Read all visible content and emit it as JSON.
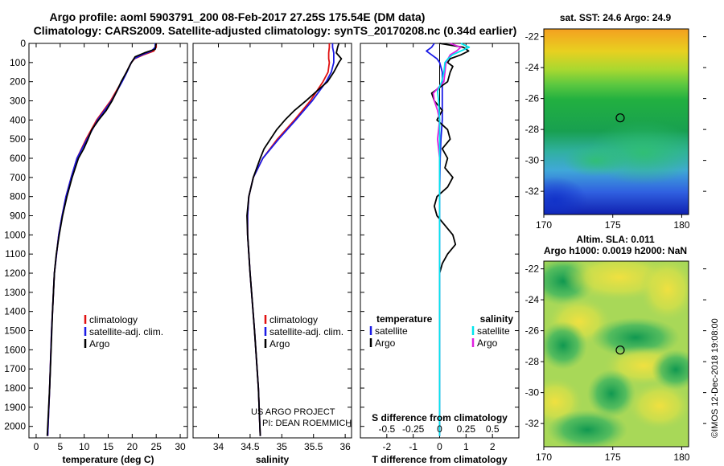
{
  "title_line1": "Argo profile: aoml 5903791_200 08-Feb-2017 27.25S 175.54E (DM data)",
  "title_line2": "Climatology: CARS2009. Satellite-adjusted climatology: synTS_20170208.nc (0.34d earlier)",
  "credit_line1": "US ARGO PROJECT",
  "credit_line2": "PI: DEAN ROEMMICH",
  "timestamp": "©IMOS 12-Dec-2018 19:08:00",
  "colors": {
    "climatology": "#e01010",
    "satellite": "#1a1ae6",
    "argo": "#000000",
    "sat_salinity": "#00e5ee",
    "argo_salinity": "#e020e0"
  },
  "chart_data": [
    {
      "type": "line",
      "xlabel": "temperature (deg C)",
      "xlim": [
        -1.5,
        31.5
      ],
      "xticks": [
        0,
        5,
        10,
        15,
        20,
        25,
        30
      ],
      "ylim": [
        0,
        2060
      ],
      "yticks": [
        0,
        100,
        200,
        300,
        400,
        500,
        600,
        700,
        800,
        900,
        1000,
        1100,
        1200,
        1300,
        1400,
        1500,
        1600,
        1700,
        1800,
        1900,
        2000
      ],
      "ytick_labels": [
        "0",
        "100",
        "200",
        "300",
        "400",
        "500",
        "600",
        "700",
        "800",
        "900",
        "1000",
        "1100",
        "1200",
        "1300",
        "1400",
        "1500",
        "1600",
        "1700",
        "1800",
        "1900",
        "2000"
      ],
      "legend": [
        "climatology",
        "satellite-adj. clim.",
        "Argo"
      ],
      "series": [
        {
          "name": "climatology",
          "depth": [
            0,
            20,
            40,
            60,
            80,
            100,
            150,
            200,
            300,
            400,
            500,
            600,
            700,
            800,
            900,
            1000,
            1200,
            1500,
            1800,
            2050
          ],
          "values": [
            25.0,
            25.0,
            24.5,
            22.3,
            20.5,
            19.8,
            18.8,
            17.8,
            15.5,
            12.6,
            10.4,
            8.5,
            7.3,
            6.2,
            5.4,
            4.7,
            3.8,
            3.2,
            2.8,
            2.4
          ]
        },
        {
          "name": "satellite-adj. clim.",
          "depth": [
            0,
            20,
            40,
            60,
            80,
            100,
            150,
            200,
            300,
            400,
            500,
            600,
            700,
            800,
            900,
            1000,
            1200,
            1500,
            1800,
            2050
          ],
          "values": [
            24.8,
            24.8,
            24.0,
            22.0,
            20.4,
            19.8,
            18.9,
            17.9,
            15.7,
            12.8,
            10.6,
            8.5,
            7.3,
            6.2,
            5.4,
            4.7,
            3.8,
            3.2,
            2.8,
            2.4
          ]
        },
        {
          "name": "Argo",
          "depth": [
            0,
            10,
            30,
            50,
            70,
            90,
            110,
            150,
            200,
            250,
            300,
            350,
            400,
            450,
            500,
            550,
            600,
            700,
            800,
            900,
            1000,
            1100,
            1200,
            1400,
            1600,
            1800,
            2000,
            2050
          ],
          "values": [
            25.0,
            24.9,
            24.8,
            22.5,
            20.6,
            20.1,
            19.6,
            18.8,
            17.7,
            16.8,
            15.8,
            14.6,
            13.0,
            11.6,
            10.8,
            9.9,
            8.8,
            7.5,
            6.4,
            5.5,
            4.8,
            4.2,
            3.8,
            3.4,
            3.1,
            2.8,
            2.4,
            2.3
          ]
        }
      ]
    },
    {
      "type": "line",
      "xlabel": "salinity",
      "xlim": [
        33.6,
        36.1
      ],
      "xticks": [
        34,
        34.5,
        35,
        35.5,
        36
      ],
      "ylim": [
        0,
        2060
      ],
      "legend": [
        "climatology",
        "satellite-adj. clim.",
        "Argo"
      ],
      "series": [
        {
          "name": "climatology",
          "depth": [
            0,
            20,
            50,
            80,
            100,
            150,
            200,
            300,
            400,
            500,
            600,
            700,
            800,
            900,
            1000,
            1200,
            1500,
            1800,
            2050
          ],
          "values": [
            35.75,
            35.75,
            35.74,
            35.74,
            35.75,
            35.73,
            35.65,
            35.45,
            35.2,
            34.93,
            34.7,
            34.55,
            34.48,
            34.46,
            34.46,
            34.5,
            34.57,
            34.63,
            34.66
          ]
        },
        {
          "name": "satellite-adj. clim.",
          "depth": [
            0,
            20,
            50,
            80,
            100,
            150,
            200,
            300,
            400,
            500,
            600,
            700,
            800,
            900,
            1000,
            1200,
            1500,
            1800,
            2050
          ],
          "values": [
            35.8,
            35.8,
            35.82,
            35.82,
            35.82,
            35.78,
            35.7,
            35.48,
            35.22,
            34.95,
            34.7,
            34.55,
            34.48,
            34.46,
            34.46,
            34.5,
            34.57,
            34.63,
            34.66
          ]
        },
        {
          "name": "Argo",
          "depth": [
            0,
            20,
            50,
            80,
            100,
            150,
            200,
            250,
            300,
            350,
            400,
            450,
            500,
            550,
            600,
            700,
            800,
            900,
            1000,
            1200,
            1500,
            1800,
            2050
          ],
          "values": [
            35.9,
            35.88,
            35.86,
            35.94,
            35.9,
            35.82,
            35.72,
            35.55,
            35.38,
            35.2,
            35.05,
            34.92,
            34.82,
            34.72,
            34.66,
            34.55,
            34.48,
            34.45,
            34.46,
            34.5,
            34.57,
            34.63,
            34.66
          ]
        }
      ]
    },
    {
      "type": "line",
      "xlabel": "T difference from climatology",
      "x2label": "S difference from climatology",
      "xlim": [
        -3,
        3
      ],
      "xticks": [
        -2,
        -1,
        0,
        1,
        2
      ],
      "xtick_labels": [
        "-2",
        "-1",
        "0",
        "1",
        "2"
      ],
      "x2ticks": [
        -0.5,
        -0.25,
        0,
        0.25,
        0.5
      ],
      "x2tick_labels": [
        "-0.5",
        "-0.25",
        "0",
        "0.25",
        "0.5"
      ],
      "x2scale": 4,
      "ylim": [
        0,
        2060
      ],
      "legend_left_title": "temperature",
      "legend_right_title": "salinity",
      "legend_left": [
        "satellite",
        "Argo"
      ],
      "legend_right": [
        "satellite",
        "Argo"
      ],
      "series": [
        {
          "name": "T satellite",
          "depth": [
            0,
            20,
            40,
            60,
            80,
            100,
            150,
            200,
            300,
            400,
            500,
            600,
            800,
            1000,
            1200,
            1500,
            2000,
            2050
          ],
          "values": [
            -0.2,
            -0.3,
            -0.5,
            -0.3,
            -0.1,
            0.0,
            0.1,
            0.1,
            0.1,
            0.1,
            0.05,
            0.02,
            0.0,
            0.0,
            0.0,
            0.0,
            0.0,
            0.0
          ]
        },
        {
          "name": "T Argo",
          "depth": [
            0,
            20,
            40,
            60,
            80,
            100,
            120,
            150,
            200,
            260,
            300,
            350,
            400,
            450,
            500,
            550,
            600,
            650,
            700,
            750,
            800,
            850,
            900,
            950,
            1000,
            1050,
            1100,
            1150,
            1200,
            1300,
            1400,
            1600,
            1800,
            2000,
            2050
          ],
          "values": [
            0.0,
            0.9,
            1.1,
            0.8,
            0.4,
            0.3,
            0.5,
            0.4,
            0.3,
            -0.3,
            -0.2,
            0.1,
            -0.1,
            0.3,
            0.4,
            0.1,
            0.3,
            0.2,
            0.5,
            0.3,
            -0.1,
            -0.2,
            -0.1,
            0.2,
            0.5,
            0.6,
            0.3,
            0.1,
            0.0,
            0.0,
            0.0,
            0.0,
            0.0,
            0.0,
            0.0
          ]
        },
        {
          "name": "S satellite",
          "depth": [
            0,
            20,
            40,
            60,
            80,
            100,
            150,
            200,
            250,
            300,
            400,
            500,
            600,
            800,
            1000,
            1200,
            1500,
            1800,
            2050
          ],
          "values": [
            0.2,
            0.28,
            0.2,
            0.12,
            0.08,
            0.05,
            0.04,
            0.02,
            -0.02,
            -0.01,
            0.0,
            0.0,
            0.0,
            0.0,
            0.0,
            0.0,
            0.0,
            0.0,
            0.0
          ]
        },
        {
          "name": "S Argo",
          "depth": [
            0,
            20,
            40,
            60,
            80,
            100,
            150,
            200,
            260,
            300,
            350,
            400,
            500,
            600,
            700,
            800,
            900,
            1000,
            1200,
            1500,
            1800,
            2050
          ],
          "values": [
            0.1,
            0.2,
            0.16,
            0.1,
            0.08,
            0.06,
            0.05,
            0.04,
            -0.06,
            -0.05,
            -0.02,
            0.0,
            -0.02,
            0.0,
            0.0,
            0.0,
            0.0,
            0.0,
            0.0,
            0.0,
            0.0,
            0.0
          ]
        }
      ]
    },
    {
      "type": "heatmap",
      "title": "sat. SST: 24.6 Argo: 24.9",
      "xlim": [
        170,
        180.5
      ],
      "ylim": [
        -33.5,
        -21.5
      ],
      "xticks": [
        170,
        175,
        180
      ],
      "yticks": [
        -22,
        -24,
        -26,
        -28,
        -30,
        -32
      ],
      "marker": [
        175.54,
        -27.25
      ]
    },
    {
      "type": "heatmap",
      "title_line1": "Altim. SLA: 0.011",
      "title_line2": "Argo h1000: 0.0019 h2000: NaN",
      "xlim": [
        170,
        180.5
      ],
      "ylim": [
        -33.5,
        -21.5
      ],
      "xticks": [
        170,
        175,
        180
      ],
      "yticks": [
        -22,
        -24,
        -26,
        -28,
        -30,
        -32
      ],
      "marker": [
        175.54,
        -27.25
      ]
    }
  ]
}
